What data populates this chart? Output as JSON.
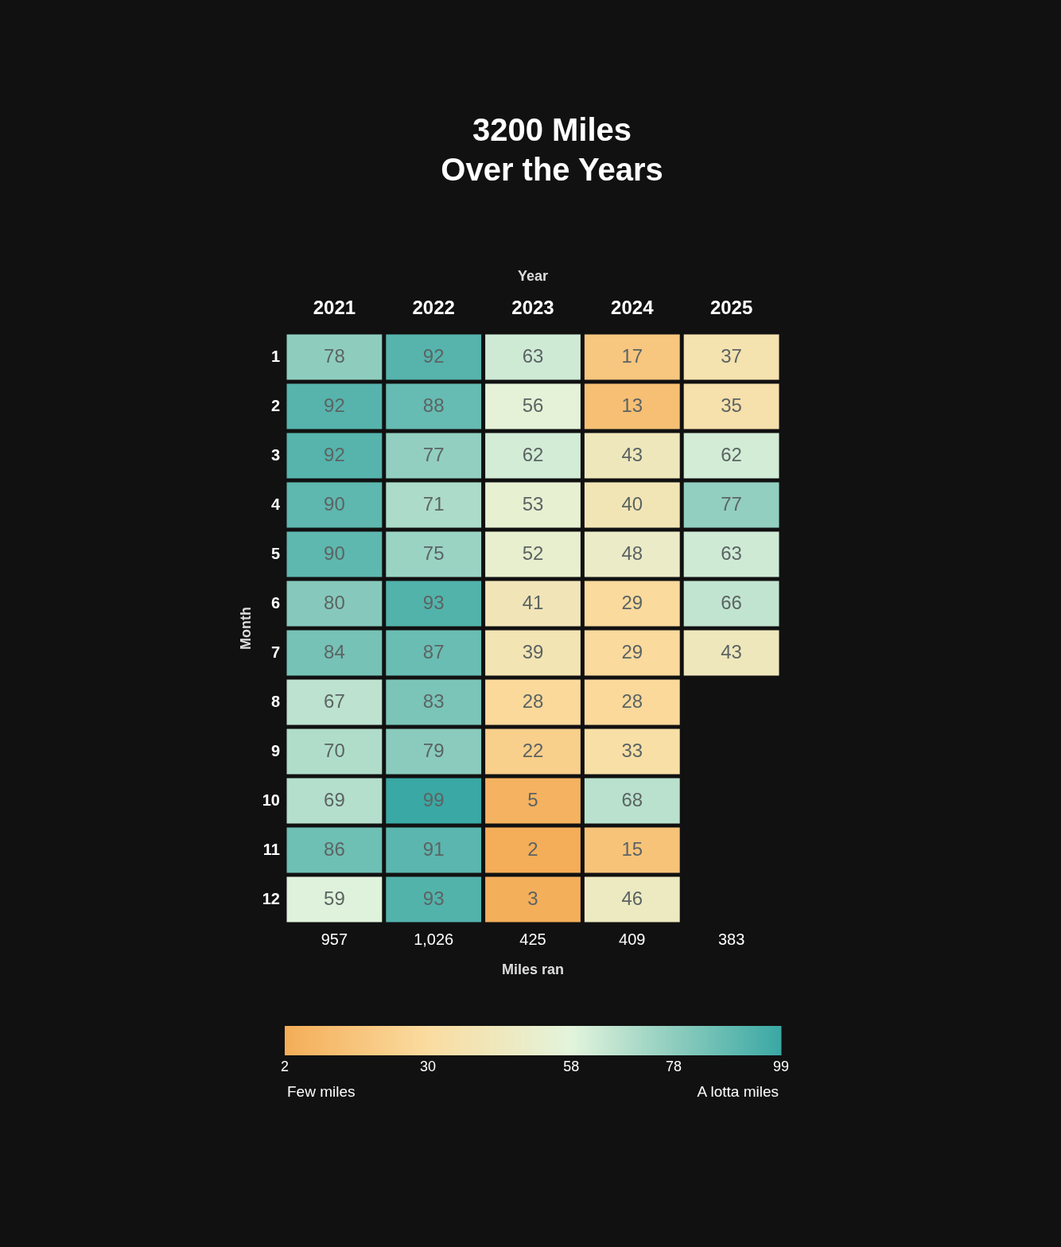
{
  "chart_data": {
    "type": "heatmap",
    "title": "3200 Miles\nOver the Years",
    "xlabel": "Year",
    "ylabel": "Month",
    "categories": [
      "2021",
      "2022",
      "2023",
      "2024",
      "2025"
    ],
    "y_categories": [
      "1",
      "2",
      "3",
      "4",
      "5",
      "6",
      "7",
      "8",
      "9",
      "10",
      "11",
      "12"
    ],
    "cells": [
      [
        78,
        92,
        63,
        17,
        37
      ],
      [
        92,
        88,
        56,
        13,
        35
      ],
      [
        92,
        77,
        62,
        43,
        62
      ],
      [
        90,
        71,
        53,
        40,
        77
      ],
      [
        90,
        75,
        52,
        48,
        63
      ],
      [
        80,
        93,
        41,
        29,
        66
      ],
      [
        84,
        87,
        39,
        29,
        43
      ],
      [
        67,
        83,
        28,
        28,
        null
      ],
      [
        70,
        79,
        22,
        33,
        null
      ],
      [
        69,
        99,
        5,
        68,
        null
      ],
      [
        86,
        91,
        2,
        15,
        null
      ],
      [
        59,
        93,
        3,
        46,
        null
      ]
    ],
    "data_labels": true,
    "totals": [
      "957",
      "1,026",
      "425",
      "409",
      "383"
    ],
    "clim": [
      2,
      99
    ],
    "cticks": [
      2,
      30,
      58,
      78,
      99
    ],
    "annotations": [
      "Miles ran",
      "Few miles",
      "A lotta miles"
    ]
  }
}
